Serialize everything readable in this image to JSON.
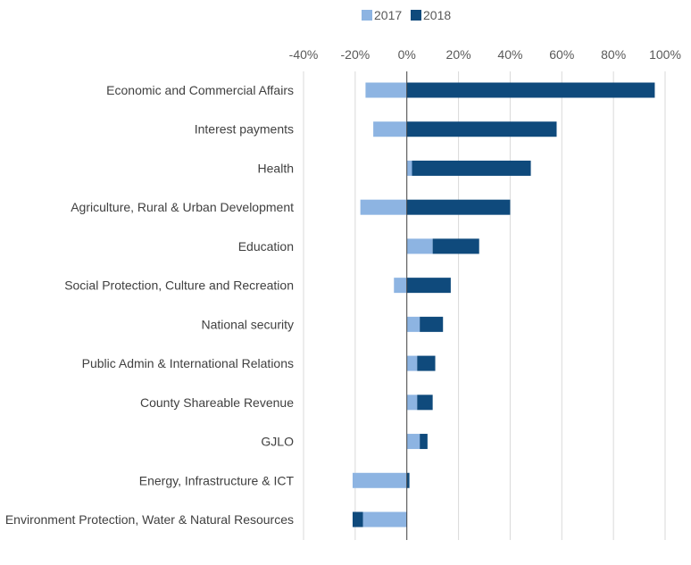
{
  "chart_data": {
    "type": "bar",
    "orientation": "horizontal",
    "stacked": true,
    "title": "",
    "xlabel": "",
    "ylabel": "",
    "xlim": [
      -40,
      100
    ],
    "x_ticks": [
      "-40%",
      "-20%",
      "0%",
      "20%",
      "40%",
      "60%",
      "80%",
      "100%"
    ],
    "x_tick_values": [
      -40,
      -20,
      0,
      20,
      40,
      60,
      80,
      100
    ],
    "grid": "vertical",
    "legend_position": "top",
    "categories": [
      "Economic and Commercial Affairs",
      "Interest payments",
      "Health",
      "Agriculture, Rural & Urban Development",
      "Education",
      "Social Protection, Culture and Recreation",
      "National security",
      "Public Admin & International Relations",
      "County Shareable Revenue",
      "GJLO",
      "Energy, Infrastructure & ICT",
      "Environment Protection, Water & Natural Resources"
    ],
    "series": [
      {
        "name": "2017",
        "color": "#8DB4E2",
        "values": [
          -16,
          -13,
          2,
          -18,
          10,
          -5,
          5,
          4,
          4,
          5,
          -21,
          -17
        ]
      },
      {
        "name": "2018",
        "color": "#0F4A7C",
        "values": [
          96,
          58,
          46,
          40,
          18,
          17,
          9,
          7,
          6,
          3,
          1,
          -4
        ]
      }
    ]
  }
}
